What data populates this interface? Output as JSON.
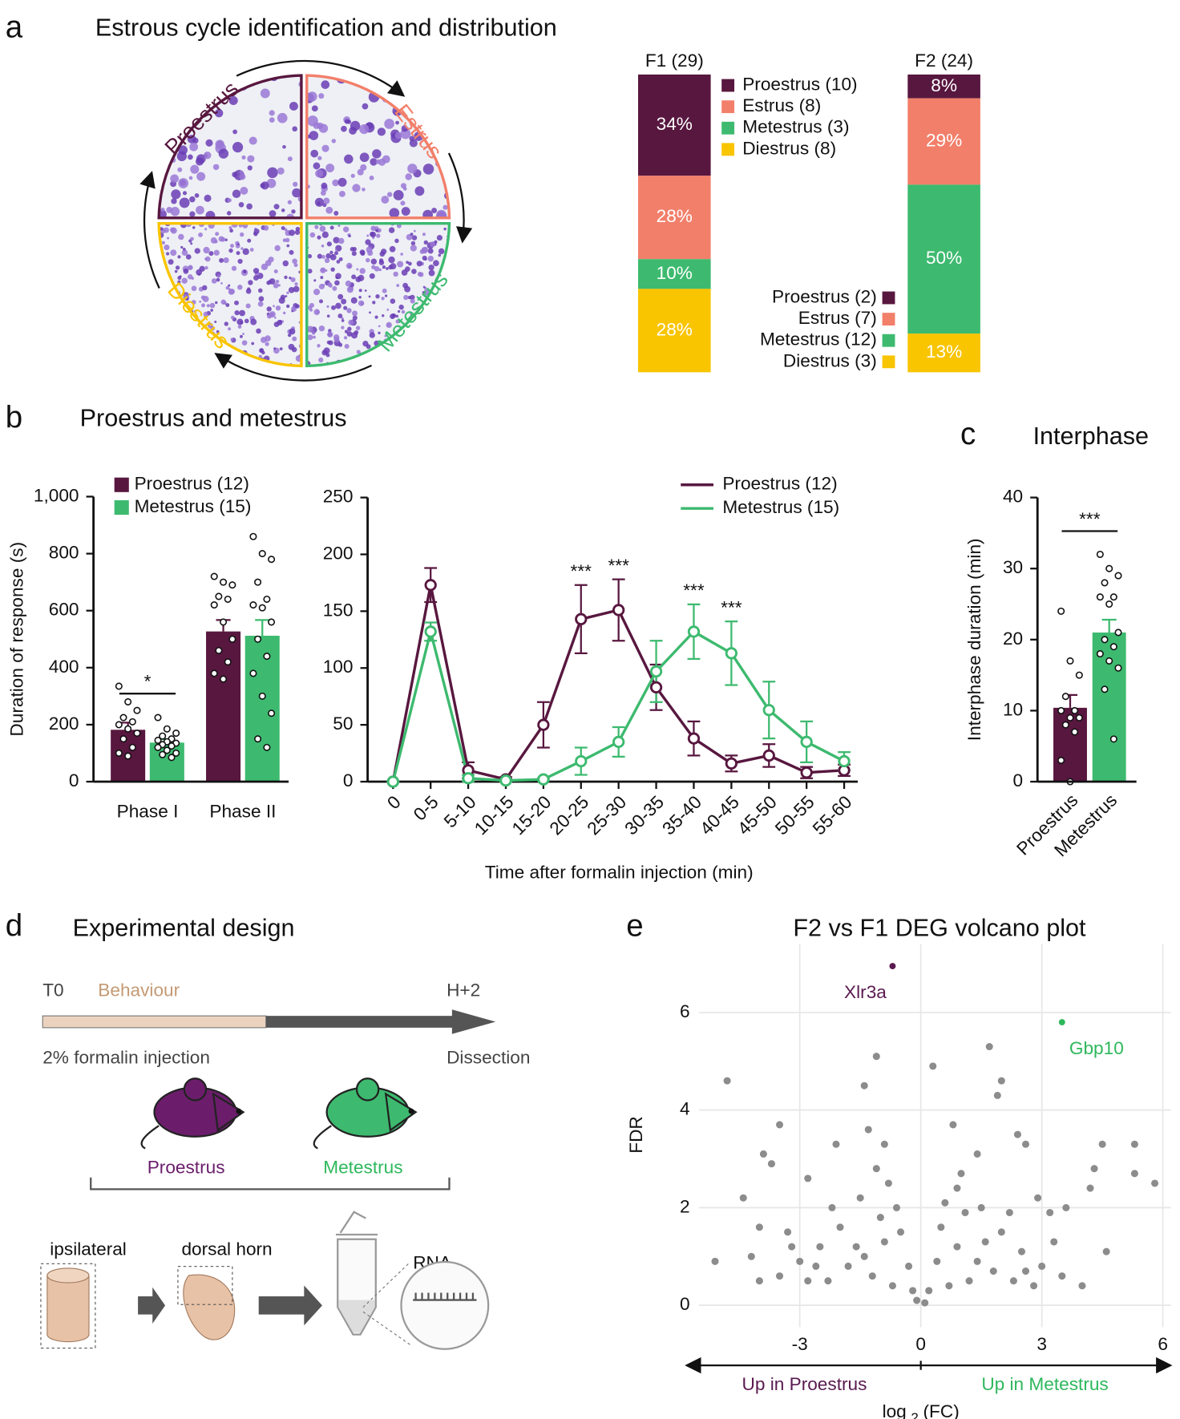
{
  "panels": [
    {
      "letter": "a",
      "title": "Estrous cycle identification and distribution"
    },
    {
      "letter": "b",
      "title": "Proestrus and metestrus"
    },
    {
      "letter": "c",
      "title": "Interphase"
    },
    {
      "letter": "d",
      "title": "Experimental design"
    },
    {
      "letter": "e",
      "title": "F2 vs F1 DEG volcano plot"
    }
  ],
  "cycle_diagram": {
    "stages": [
      {
        "label": "Proestrus",
        "color": "#58173f"
      },
      {
        "label": "Estrus",
        "color": "#f27f6a"
      },
      {
        "label": "Metestrus",
        "color": "#3dba6f"
      },
      {
        "label": "Diestrus",
        "color": "#f9c400"
      }
    ]
  },
  "chart_data": [
    {
      "type": "stacked_bar",
      "title": "F1 (29)",
      "legend": "right",
      "ylim": [
        0,
        100
      ],
      "series": [
        {
          "name": "Proestrus (10)",
          "color": "#58173f",
          "values": [
            34
          ],
          "value_labels": [
            "34%"
          ]
        },
        {
          "name": "Estrus (8)",
          "color": "#f27f6a",
          "values": [
            28
          ],
          "value_labels": [
            "28%"
          ]
        },
        {
          "name": "Metestrus (3)",
          "color": "#3dba6f",
          "values": [
            10
          ],
          "value_labels": [
            "10%"
          ]
        },
        {
          "name": "Diestrus (8)",
          "color": "#f9c400",
          "values": [
            28
          ],
          "value_labels": [
            "28%"
          ]
        }
      ]
    },
    {
      "type": "stacked_bar",
      "title": "F2 (24)",
      "legend": "left",
      "ylim": [
        0,
        100
      ],
      "series": [
        {
          "name": "Proestrus (2)",
          "color": "#58173f",
          "values": [
            8
          ],
          "value_labels": [
            "8%"
          ]
        },
        {
          "name": "Estrus (7)",
          "color": "#f27f6a",
          "values": [
            29
          ],
          "value_labels": [
            "29%"
          ]
        },
        {
          "name": "Metestrus (12)",
          "color": "#3dba6f",
          "values": [
            50
          ],
          "value_labels": [
            "50%"
          ]
        },
        {
          "name": "Diestrus (3)",
          "color": "#f9c400",
          "values": [
            13
          ],
          "value_labels": [
            "13%"
          ]
        }
      ]
    },
    {
      "type": "bar_points",
      "ylabel": "Duration of response (s)",
      "categories": [
        "Phase I",
        "Phase II"
      ],
      "ylim": [
        0,
        1000
      ],
      "yticks": [
        0,
        200,
        400,
        600,
        800,
        {
          "value": 1000,
          "label": "1,000"
        }
      ],
      "series": [
        {
          "name": "Proestrus (12)",
          "color": "#58173f",
          "values": [
            182,
            527
          ],
          "errors": [
            25,
            40
          ],
          "points": [
            [
              335,
              280,
              250,
              225,
              210,
              200,
              185,
              170,
              150,
              120,
              100,
              90
            ],
            [
              720,
              700,
              690,
              650,
              640,
              620,
              560,
              500,
              460,
              420,
              380,
              360
            ]
          ]
        },
        {
          "name": "Metestrus (15)",
          "color": "#3dba6f",
          "values": [
            137,
            512
          ],
          "errors": [
            12,
            55
          ],
          "points": [
            [
              225,
              185,
              170,
              160,
              150,
              145,
              140,
              135,
              130,
              125,
              120,
              110,
              100,
              95,
              85
            ],
            [
              860,
              800,
              780,
              700,
              640,
              620,
              610,
              560,
              500,
              440,
              380,
              300,
              240,
              150,
              120
            ]
          ]
        }
      ],
      "annotations": [
        {
          "text": "*",
          "category": 0
        }
      ]
    },
    {
      "type": "line",
      "xlabel": "Time after formalin injection (min)",
      "categories": [
        "0",
        "0-5",
        "5-10",
        "10-15",
        "15-20",
        "20-25",
        "25-30",
        "30-35",
        "35-40",
        "40-45",
        "45-50",
        "50-55",
        "55-60"
      ],
      "ylim": [
        0,
        250
      ],
      "yticks": [
        0,
        50,
        100,
        150,
        200,
        250
      ],
      "series": [
        {
          "name": "Proestrus (12)",
          "color": "#58173f",
          "values": [
            0,
            173,
            10,
            2,
            50,
            143,
            151,
            83,
            38,
            16,
            23,
            8,
            10
          ],
          "errors": [
            0,
            15,
            7,
            2,
            20,
            30,
            27,
            20,
            15,
            7,
            10,
            5,
            5
          ]
        },
        {
          "name": "Metestrus (15)",
          "color": "#3dba6f",
          "values": [
            0,
            132,
            3,
            1,
            2,
            18,
            35,
            97,
            132,
            113,
            63,
            35,
            18
          ],
          "errors": [
            0,
            8,
            3,
            1,
            1,
            12,
            13,
            27,
            24,
            28,
            25,
            18,
            8
          ]
        }
      ],
      "annotations": [
        {
          "text": "***",
          "category": 5
        },
        {
          "text": "***",
          "category": 6
        },
        {
          "text": "***",
          "category": 8
        },
        {
          "text": "***",
          "category": 9
        }
      ]
    },
    {
      "type": "bar_points",
      "title": "Interphase",
      "ylabel": "Interphase duration (min)",
      "categories": [
        "Proestrus",
        "Metestrus"
      ],
      "ylim": [
        0,
        40
      ],
      "yticks": [
        0,
        10,
        20,
        30,
        40
      ],
      "values": [
        10.4,
        21
      ],
      "errors": [
        1.8,
        1.8
      ],
      "colors": [
        "#58173f",
        "#3dba6f"
      ],
      "points": [
        [
          24,
          17,
          15,
          12,
          10,
          10,
          9,
          9,
          8,
          7,
          3,
          0
        ],
        [
          32,
          30,
          29,
          28,
          26,
          26,
          25,
          21,
          20,
          19,
          18,
          17,
          16,
          13,
          6
        ]
      ],
      "annotations": [
        {
          "text": "***",
          "category": 0
        }
      ]
    },
    {
      "type": "scatter",
      "ylabel": "FDR",
      "xlabel": {
        "base": "log",
        "sub": "2",
        "rest": "(FC)"
      },
      "xlim": [
        -5.5,
        6.2
      ],
      "ylim": [
        -0.45,
        7.4
      ],
      "xticks": [
        -3,
        0,
        3,
        6
      ],
      "yticks": [
        0,
        2,
        4,
        6
      ],
      "grid": true,
      "series": [
        {
          "color": "#8c8c8c",
          "x": [
            -4.8,
            -5.1,
            -4.4,
            -3.5,
            -3.9,
            -3.7,
            -2.1,
            -1.3,
            -1.1,
            -1.4,
            0.3,
            1.7,
            1.9,
            2.0,
            0.8,
            2.6,
            2.4,
            4.5,
            5.3,
            5.3,
            5.8,
            4.2,
            4.3,
            3.2,
            -4.0,
            -2.8,
            -0.9,
            1.4,
            2.9,
            3.6,
            4.6,
            -3.2,
            -4.2,
            -0.2,
            0.2,
            -0.5,
            0.5,
            -0.8,
            0.9,
            -1.0,
            1.1,
            -1.5,
            1.5,
            -2.0,
            2.0,
            -2.5,
            2.5,
            -3.0,
            3.0,
            -3.5,
            3.5,
            -4.0,
            4.0,
            -0.3,
            0.4,
            -0.7,
            0.7,
            -1.2,
            1.2,
            -1.8,
            1.8,
            -2.3,
            2.3,
            -2.8,
            2.8,
            -1.6,
            1.6,
            -0.6,
            0.6,
            -1.1,
            1.0,
            -2.2,
            2.2,
            -0.1,
            0.1,
            -1.4,
            1.4,
            -3.3,
            3.3,
            -0.9,
            0.9,
            -2.6,
            2.6
          ],
          "values": [
            4.6,
            0.9,
            2.2,
            3.7,
            3.1,
            2.9,
            3.3,
            3.6,
            5.1,
            4.5,
            4.9,
            5.3,
            4.3,
            4.6,
            3.7,
            3.3,
            3.5,
            3.3,
            3.3,
            2.7,
            2.5,
            2.4,
            2.8,
            1.9,
            1.6,
            2.6,
            3.3,
            3.1,
            2.2,
            2.0,
            1.1,
            1.2,
            1.0,
            0.3,
            0.3,
            1.5,
            1.6,
            2.5,
            2.4,
            1.8,
            1.9,
            2.2,
            2.0,
            1.6,
            1.5,
            1.2,
            1.1,
            0.9,
            0.8,
            0.6,
            0.6,
            0.5,
            0.4,
            0.8,
            0.9,
            0.4,
            0.4,
            0.6,
            0.5,
            0.8,
            0.7,
            0.5,
            0.5,
            0.5,
            0.4,
            1.2,
            1.3,
            2.0,
            2.1,
            2.8,
            2.7,
            2.0,
            1.9,
            0.1,
            0.05,
            1.0,
            0.9,
            1.5,
            1.3,
            1.3,
            1.2,
            0.8,
            0.7
          ]
        },
        {
          "name": "Xlr3a",
          "color": "#5a1a50",
          "x": [
            -0.7
          ],
          "values": [
            6.95
          ]
        },
        {
          "name": "Gbp10",
          "color": "#2eb85c",
          "x": [
            3.5
          ],
          "values": [
            5.8
          ]
        }
      ],
      "arrows": {
        "left": "Up in Proestrus",
        "right": "Up in Metestrus"
      }
    }
  ],
  "design_diagram": {
    "start": "T0",
    "phase": "Behaviour",
    "end": "H+2",
    "start_event": "2% formalin injection",
    "end_event": "Dissection",
    "groups": [
      "Proestrus",
      "Metestrus"
    ],
    "steps": [
      "ipsilateral",
      "dorsal horn",
      "RNA"
    ]
  }
}
